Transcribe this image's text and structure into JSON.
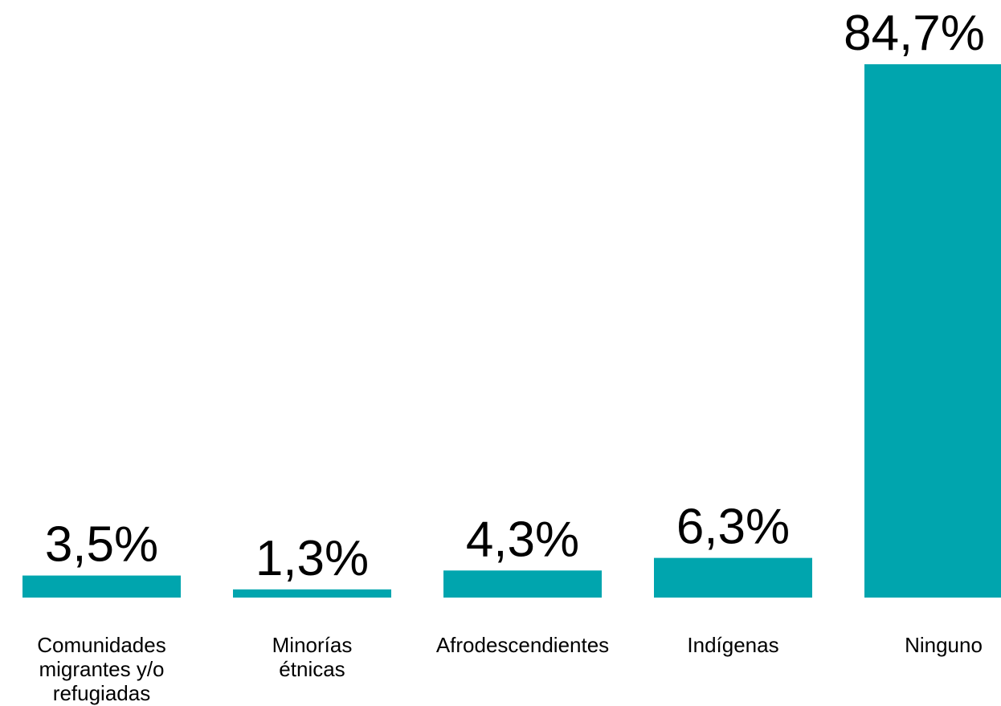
{
  "chart_data": {
    "type": "bar",
    "categories": [
      [
        "Comunidades",
        "migrantes y/o",
        "refugiadas"
      ],
      [
        "Minorías",
        "étnicas"
      ],
      [
        "Afrodescendientes"
      ],
      [
        "Indígenas"
      ],
      [
        "Ninguno"
      ]
    ],
    "values": [
      3.5,
      1.3,
      4.3,
      6.3,
      84.7
    ],
    "value_labels": [
      "3,5%",
      "1,3%",
      "4,3%",
      "6,3%",
      "84,7%"
    ],
    "ylim": [
      0,
      84.7
    ],
    "grid": false,
    "legend": "none",
    "bar_color": "#00A5AE"
  }
}
